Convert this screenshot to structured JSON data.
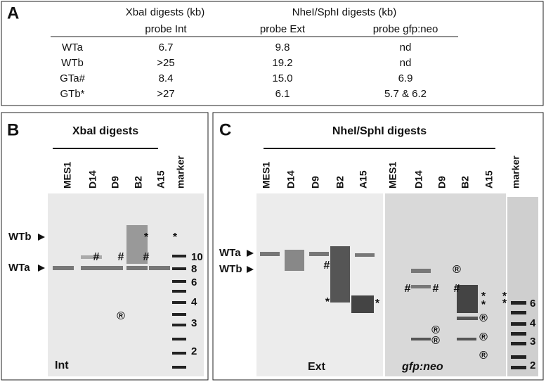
{
  "panel_a": {
    "label": "A",
    "headers": [
      "XbaI digests (kb)",
      "NheI/SphI digests (kb)"
    ],
    "subheaders": [
      "probe Int",
      "probe Ext",
      "probe gfp:neo"
    ],
    "rows": [
      [
        "WTa",
        "6.7",
        "9.8",
        "nd"
      ],
      [
        "WTb",
        ">25",
        "19.2",
        "nd"
      ],
      [
        "GTa#",
        "8.4",
        "15.0",
        "6.9"
      ],
      [
        "GTb*",
        ">27",
        "6.1",
        "5.7 & 6.2"
      ]
    ]
  },
  "panel_b": {
    "label": "B",
    "title": "XbaI digests",
    "lanes": [
      "MES1",
      "D14",
      "D9",
      "B2",
      "A15",
      "marker"
    ],
    "bands": [
      "WTb",
      "WTa"
    ],
    "marker_sizes": [
      "10",
      "8",
      "6",
      "4",
      "3",
      "2"
    ],
    "probe": "Int",
    "symbols": [
      "#",
      "#",
      "#",
      "*",
      "*",
      "®"
    ]
  },
  "panel_c": {
    "label": "C",
    "title": "NheI/SphI digests",
    "lanes": [
      "MES1",
      "D14",
      "D9",
      "B2",
      "A15",
      "MES1",
      "D14",
      "D9",
      "B2",
      "A15",
      "marker"
    ],
    "bands": [
      "WTa",
      "WTb"
    ],
    "marker_sizes": [
      "6",
      "4",
      "3",
      "2"
    ],
    "probes": [
      "Ext",
      "gfp:neo"
    ],
    "symbols": [
      "#",
      "*",
      "*",
      "®",
      "#",
      "#",
      "#",
      "*",
      "*",
      "*",
      "*",
      "®",
      "®",
      "®",
      "®",
      "®"
    ]
  }
}
